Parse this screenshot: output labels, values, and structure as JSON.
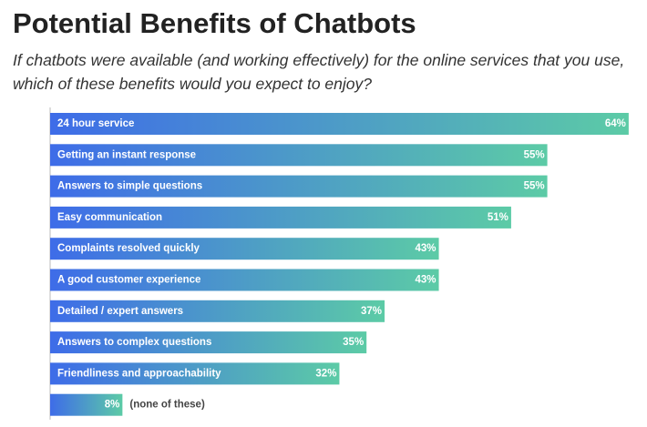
{
  "chart_data": {
    "type": "bar",
    "orientation": "horizontal",
    "title": "Potential Benefits of Chatbots",
    "subtitle": "If chatbots were available (and working effectively) for the online services that you use, which of these benefits would you expect to enjoy?",
    "categories": [
      "24 hour service",
      "Getting an instant response",
      "Answers to simple questions",
      "Easy communication",
      "Complaints resolved quickly",
      "A good customer experience",
      "Detailed / expert answers",
      "Answers to complex questions",
      "Friendliness and approachability",
      "(none of these)"
    ],
    "values": [
      64,
      55,
      55,
      51,
      43,
      43,
      37,
      35,
      32,
      8
    ],
    "value_labels": [
      "64%",
      "55%",
      "55%",
      "51%",
      "43%",
      "43%",
      "37%",
      "35%",
      "32%",
      "8%"
    ],
    "gradient": [
      "#3e6ce8",
      "#5ccba6"
    ]
  }
}
